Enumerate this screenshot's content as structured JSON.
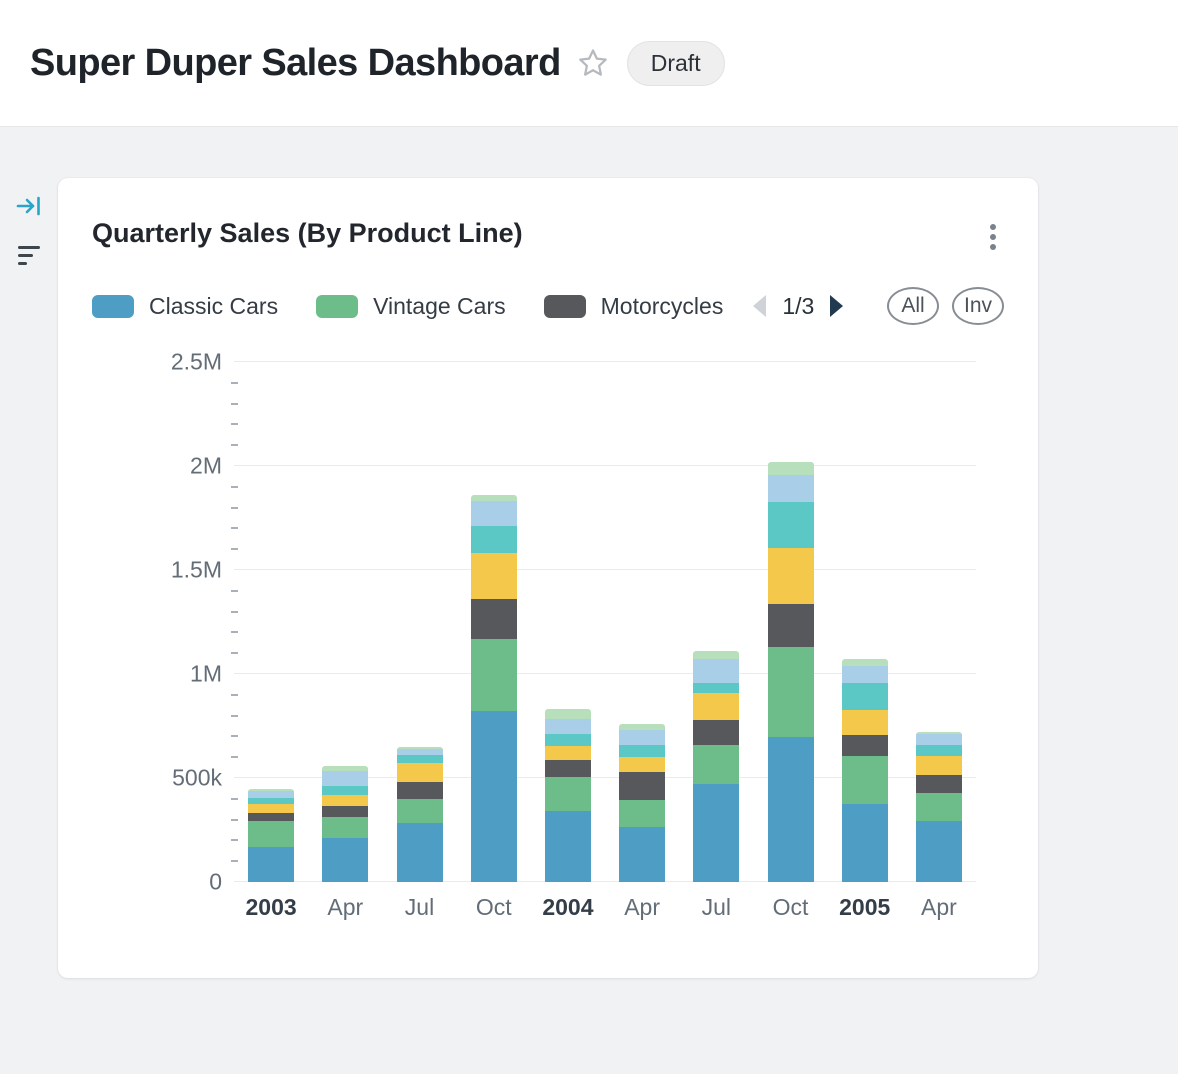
{
  "header": {
    "title": "Super Duper Sales Dashboard",
    "status_badge": "Draft"
  },
  "card": {
    "title": "Quarterly Sales (By Product Line)",
    "pager": {
      "label": "1/3"
    },
    "buttons": {
      "all": "All",
      "inv": "Inv"
    },
    "legend": {
      "items": [
        {
          "label": "Classic Cars",
          "color": "#4d9dc5"
        },
        {
          "label": "Vintage Cars",
          "color": "#6dbd8b"
        },
        {
          "label": "Motorcycles",
          "color": "#56585b"
        }
      ]
    }
  },
  "chart_data": {
    "type": "bar",
    "stacked": true,
    "title": "Quarterly Sales (By Product Line)",
    "categories": [
      "2003",
      "Apr",
      "Jul",
      "Oct",
      "2004",
      "Apr",
      "Jul",
      "Oct",
      "2005",
      "Apr"
    ],
    "year_indices": [
      0,
      4,
      8
    ],
    "series": [
      {
        "name": "Classic Cars",
        "color": "#4d9dc5",
        "values": [
          170000,
          210000,
          285000,
          820000,
          340000,
          265000,
          470000,
          695000,
          375000,
          295000
        ]
      },
      {
        "name": "Vintage Cars",
        "color": "#6dbd8b",
        "values": [
          125000,
          105000,
          115000,
          350000,
          165000,
          130000,
          190000,
          435000,
          230000,
          135000
        ]
      },
      {
        "name": "Motorcycles",
        "color": "#56585b",
        "values": [
          35000,
          50000,
          80000,
          190000,
          80000,
          135000,
          120000,
          205000,
          100000,
          85000
        ]
      },
      {
        "name": "",
        "color": "#f3c84b",
        "values": [
          45000,
          55000,
          90000,
          220000,
          70000,
          70000,
          130000,
          270000,
          120000,
          90000
        ]
      },
      {
        "name": "",
        "color": "#5bc8c6",
        "values": [
          30000,
          40000,
          40000,
          130000,
          55000,
          60000,
          45000,
          220000,
          130000,
          55000
        ]
      },
      {
        "name": "",
        "color": "#a9cfe8",
        "values": [
          35000,
          75000,
          30000,
          120000,
          75000,
          70000,
          115000,
          130000,
          85000,
          50000
        ]
      },
      {
        "name": "",
        "color": "#b7dfbc",
        "values": [
          5000,
          25000,
          10000,
          30000,
          45000,
          30000,
          40000,
          65000,
          30000,
          10000
        ]
      }
    ],
    "ylim": [
      0,
      2500000
    ],
    "yticks": [
      {
        "value": 0,
        "label": "0"
      },
      {
        "value": 500000,
        "label": "500k"
      },
      {
        "value": 1000000,
        "label": "1M"
      },
      {
        "value": 1500000,
        "label": "1.5M"
      },
      {
        "value": 2000000,
        "label": "2M"
      },
      {
        "value": 2500000,
        "label": "2.5M"
      }
    ],
    "minor_tick_interval": 100000,
    "grid": "horizontal",
    "legend_position": "top"
  }
}
